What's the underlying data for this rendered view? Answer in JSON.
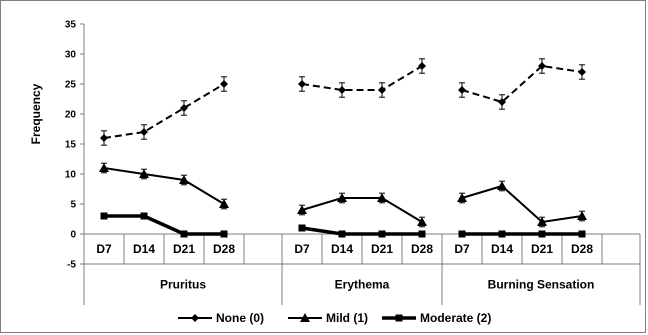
{
  "chart_data": {
    "type": "line",
    "ylabel": "Frequency",
    "ylim": [
      -5,
      35
    ],
    "yticks": [
      "35",
      "30",
      "25",
      "20",
      "15",
      "10",
      "5",
      "0",
      "-5"
    ],
    "groups": [
      {
        "label": "Pruritus",
        "categories": [
          "D7",
          "D14",
          "D21",
          "D28"
        ]
      },
      {
        "label": "Erythema",
        "categories": [
          "D7",
          "D14",
          "D21",
          "D28"
        ]
      },
      {
        "label": "Burning Sensation",
        "categories": [
          "D7",
          "D14",
          "D21",
          "D28"
        ]
      }
    ],
    "series": [
      {
        "name": "None (0)",
        "marker": "diamond",
        "dash": true,
        "values": [
          [
            16,
            17,
            21,
            25
          ],
          [
            25,
            24,
            24,
            28
          ],
          [
            24,
            22,
            28,
            27
          ]
        ],
        "errors": [
          [
            1.2,
            1.2,
            1.2,
            1.2
          ],
          [
            1.2,
            1.2,
            1.2,
            1.2
          ],
          [
            1.2,
            1.2,
            1.2,
            1.2
          ]
        ]
      },
      {
        "name": "Mild (1)",
        "marker": "triangle",
        "dash": false,
        "values": [
          [
            11,
            10,
            9,
            5
          ],
          [
            4,
            6,
            6,
            2
          ],
          [
            6,
            8,
            2,
            3
          ]
        ],
        "errors": [
          [
            0.8,
            0.8,
            0.8,
            0.8
          ],
          [
            0.8,
            0.8,
            0.8,
            0.8
          ],
          [
            0.8,
            0.8,
            0.8,
            0.8
          ]
        ]
      },
      {
        "name": "Moderate (2)",
        "marker": "square",
        "dash": false,
        "values": [
          [
            3,
            3,
            0,
            0
          ],
          [
            1,
            0,
            0,
            0
          ],
          [
            0,
            0,
            0,
            0
          ]
        ],
        "errors": [
          [
            0.3,
            0.3,
            0,
            0
          ],
          [
            0.3,
            0,
            0,
            0
          ],
          [
            0,
            0,
            0,
            0
          ]
        ]
      }
    ],
    "legend_position": "bottom",
    "grid": false
  }
}
